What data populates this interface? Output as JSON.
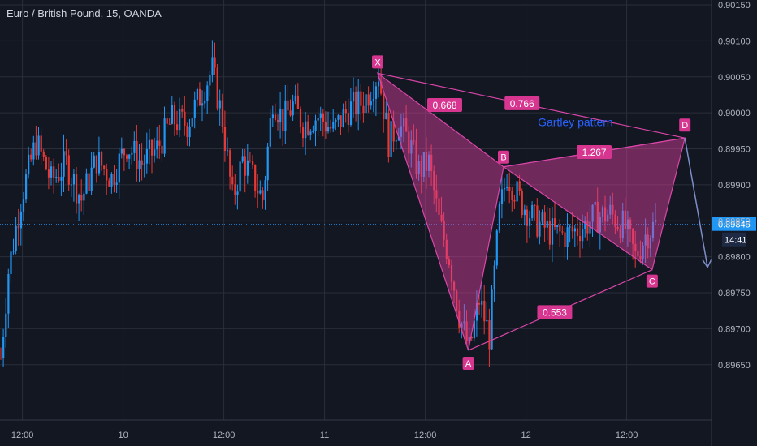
{
  "header": {
    "symbol_title": "Euro / British Pound, 15, OANDA"
  },
  "colors": {
    "background": "#131722",
    "grid": "#2a2e39",
    "up_candle": "#2196f3",
    "down_candle": "#e53935",
    "pattern_fill": "#e040a0",
    "pattern_line": "#d946a8",
    "label_bg": "#d6368f",
    "price_line": "#2196f3",
    "annotation_text": "#2962ff",
    "projection_arrow": "#7b8ec8"
  },
  "chart_data": {
    "type": "candlestick",
    "title": "Euro / British Pound, 15, OANDA",
    "ylim": [
      0.89625,
      0.9015
    ],
    "y_ticks": [
      "0.90150",
      "0.90100",
      "0.90050",
      "0.90000",
      "0.89950",
      "0.89900",
      "0.89850",
      "0.89800",
      "0.89750",
      "0.89700",
      "0.89650"
    ],
    "y_tick_values": [
      0.9015,
      0.901,
      0.9005,
      0.9,
      0.8995,
      0.899,
      0.8985,
      0.898,
      0.8975,
      0.897,
      0.8965
    ],
    "x_ticks": [
      "12:00",
      "10",
      "12:00",
      "11",
      "12:00",
      "12",
      "12:00"
    ],
    "x_tick_bars": [
      6,
      46,
      86,
      126,
      166,
      206,
      246
    ],
    "bar_count": 292,
    "current_price": "0.89845",
    "current_price_value": 0.89845,
    "countdown": "14:41",
    "ohlc_path": [
      [
        0,
        0.8966
      ],
      [
        3,
        0.8978
      ],
      [
        8,
        0.8988
      ],
      [
        14,
        0.8996
      ],
      [
        20,
        0.89905
      ],
      [
        26,
        0.8993
      ],
      [
        32,
        0.8988
      ],
      [
        38,
        0.89935
      ],
      [
        44,
        0.8991
      ],
      [
        50,
        0.89955
      ],
      [
        56,
        0.8993
      ],
      [
        62,
        0.8995
      ],
      [
        68,
        0.8999
      ],
      [
        74,
        0.89985
      ],
      [
        80,
        0.9003
      ],
      [
        84,
        0.9006
      ],
      [
        88,
        0.8999
      ],
      [
        92,
        0.8988
      ],
      [
        96,
        0.89935
      ],
      [
        100,
        0.8991
      ],
      [
        104,
        0.8988
      ],
      [
        108,
        0.9002
      ],
      [
        112,
        0.8999
      ],
      [
        116,
        0.9001
      ],
      [
        120,
        0.89985
      ],
      [
        126,
        0.89995
      ],
      [
        132,
        0.89975
      ],
      [
        138,
        0.90005
      ],
      [
        144,
        0.90015
      ],
      [
        150,
        0.90055
      ],
      [
        154,
        0.8996
      ],
      [
        158,
        0.89985
      ],
      [
        162,
        0.8996
      ],
      [
        166,
        0.8992
      ],
      [
        170,
        0.8993
      ],
      [
        174,
        0.8985
      ],
      [
        178,
        0.898
      ],
      [
        182,
        0.8972
      ],
      [
        186,
        0.8967
      ],
      [
        190,
        0.8974
      ],
      [
        194,
        0.8969
      ],
      [
        198,
        0.8986
      ],
      [
        201,
        0.89915
      ],
      [
        206,
        0.8988
      ],
      [
        212,
        0.8985
      ],
      [
        218,
        0.89835
      ],
      [
        224,
        0.8983
      ],
      [
        230,
        0.8984
      ],
      [
        236,
        0.89855
      ],
      [
        242,
        0.8986
      ],
      [
        248,
        0.8984
      ],
      [
        252,
        0.898
      ],
      [
        256,
        0.8983
      ],
      [
        260,
        0.89845
      ]
    ],
    "pattern": {
      "name": "Gartley pattern",
      "points": [
        {
          "label": "X",
          "bar": 150,
          "price": 0.90055
        },
        {
          "label": "A",
          "bar": 186,
          "price": 0.8967
        },
        {
          "label": "B",
          "bar": 200,
          "price": 0.89925
        },
        {
          "label": "C",
          "bar": 259,
          "price": 0.89782
        },
        {
          "label": "D",
          "bar": 272,
          "price": 0.89965
        }
      ],
      "ratios": [
        {
          "label": "0.668",
          "between": "XA-B"
        },
        {
          "label": "0.766",
          "between": "X-D"
        },
        {
          "label": "1.267",
          "between": "B-D"
        },
        {
          "label": "0.553",
          "between": "A-C"
        }
      ],
      "projection": {
        "from_bar": 272,
        "from_price": 0.89965,
        "to_bar": 281,
        "to_price": 0.8979
      }
    }
  }
}
